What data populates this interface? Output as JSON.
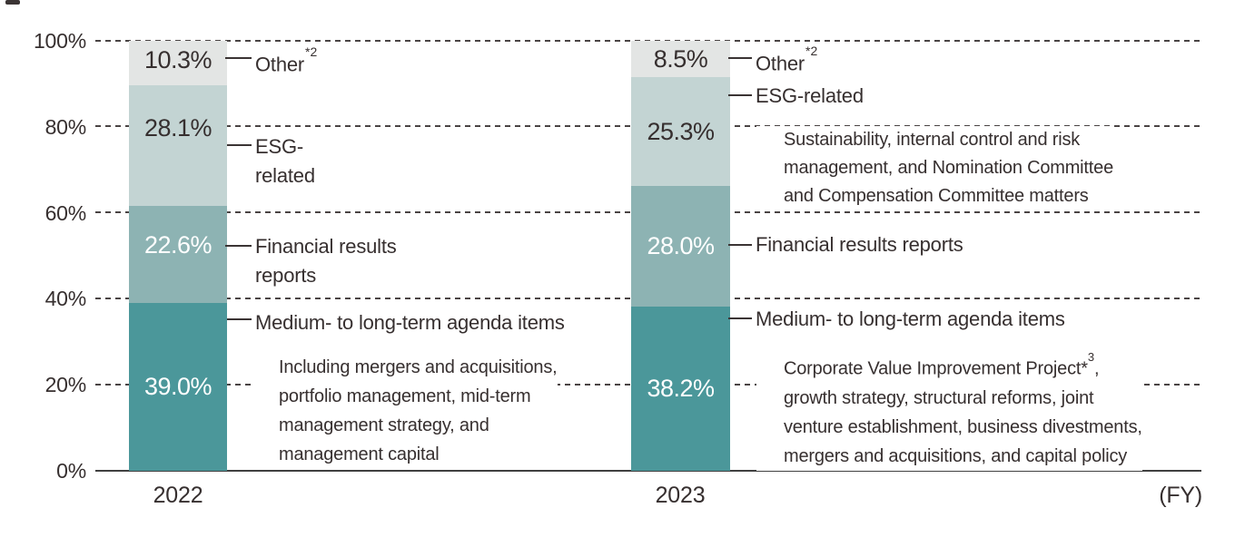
{
  "chart_data": {
    "type": "bar",
    "stacked": true,
    "title": "",
    "categories": [
      "2022",
      "2023"
    ],
    "x_axis_suffix": "(FY)",
    "ylim": [
      0,
      100
    ],
    "grid": "dashed-horizontal",
    "yticks": [
      {
        "value": 0,
        "label": "0%"
      },
      {
        "value": 20,
        "label": "20%"
      },
      {
        "value": 40,
        "label": "40%"
      },
      {
        "value": 60,
        "label": "60%"
      },
      {
        "value": 80,
        "label": "80%"
      },
      {
        "value": 100,
        "label": "100%"
      }
    ],
    "series": [
      {
        "key": "medium",
        "name": "Medium- to long-term agenda items",
        "values": [
          39.0,
          38.2
        ],
        "color": "#4B979A",
        "label_color": "#FFFFFF"
      },
      {
        "key": "financial",
        "name": "Financial results reports",
        "values": [
          22.6,
          28.0
        ],
        "color": "#8DB3B3",
        "label_color": "#FFFFFF"
      },
      {
        "key": "esg",
        "name": "ESG-related",
        "values": [
          28.1,
          25.3
        ],
        "color": "#C3D4D3",
        "label_color": "#362F2F"
      },
      {
        "key": "other",
        "name": "Other",
        "values": [
          10.3,
          8.5
        ],
        "color": "#E3E5E4",
        "label_color": "#362F2F"
      }
    ]
  },
  "annotations": {
    "fy2022": {
      "other": {
        "text": "Other",
        "sup": "*2"
      },
      "esg": {
        "line1": "ESG-",
        "line2": "related"
      },
      "financial": {
        "line1": "Financial results",
        "line2": "reports"
      },
      "medium": {
        "label": "Medium- to long-term agenda items",
        "description": [
          "Including mergers and acquisitions,",
          "portfolio management, mid-term",
          "management strategy, and",
          "management capital"
        ]
      }
    },
    "fy2023": {
      "other": {
        "text": "Other",
        "sup": "*2"
      },
      "esg": {
        "label": "ESG-related",
        "description": [
          "Sustainability, internal control and risk",
          "management, and Nomination Committee",
          "and Compensation Committee matters"
        ]
      },
      "financial": {
        "label": "Financial results reports"
      },
      "medium": {
        "label": "Medium- to long-term agenda items",
        "description_line1": {
          "text": "Corporate Value Improvement Project*",
          "sup": "3",
          "tail": ","
        },
        "description_rest": [
          "growth strategy, structural reforms, joint",
          "venture establishment, business divestments,",
          "mergers and acquisitions, and capital policy"
        ]
      }
    }
  }
}
